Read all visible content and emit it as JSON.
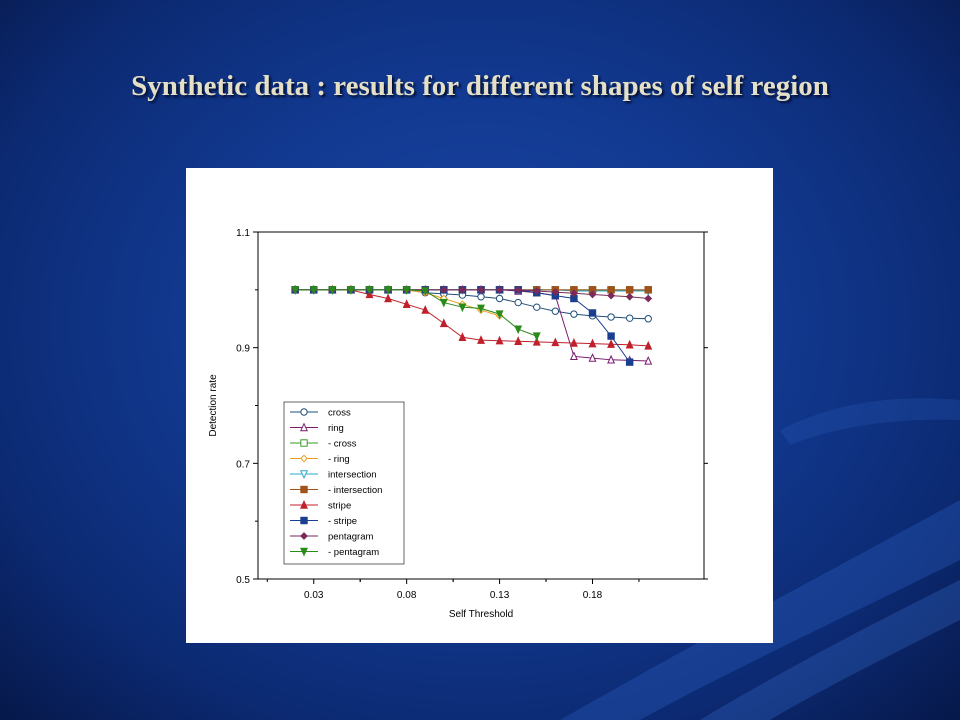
{
  "slide": {
    "title": "Synthetic data : results for different shapes of self region"
  },
  "colors": {
    "background": "#123a92",
    "title": "#e4e0c8",
    "panel": "#ffffff"
  },
  "chart_data": {
    "type": "line",
    "title": "",
    "xlabel": "Self Threshold",
    "ylabel": "Detection rate",
    "xlim": [
      0.0,
      0.24
    ],
    "ylim": [
      0.5,
      1.1
    ],
    "xticks": [
      "0.03",
      "0.08",
      "0.13",
      "0.18"
    ],
    "yticks": [
      "0.5",
      "0.7",
      "0.9",
      "1.1"
    ],
    "grid": false,
    "legend_position": "lower-left",
    "x": [
      0.02,
      0.03,
      0.04,
      0.05,
      0.06,
      0.07,
      0.08,
      0.09,
      0.1,
      0.11,
      0.12,
      0.13,
      0.14,
      0.15,
      0.16,
      0.17,
      0.18,
      0.19,
      0.2,
      0.21,
      0.22
    ],
    "series": [
      {
        "name": "cross",
        "color": "#1f4e79",
        "marker": "circle",
        "values": [
          1.0,
          1.0,
          1.0,
          1.0,
          1.0,
          1.0,
          1.0,
          0.995,
          0.993,
          0.991,
          0.988,
          0.985,
          0.978,
          0.97,
          0.963,
          0.958,
          0.955,
          0.953,
          0.951,
          0.95,
          null
        ]
      },
      {
        "name": "ring",
        "color": "#7a1b6d",
        "marker": "triangle-up",
        "values": [
          1.0,
          1.0,
          1.0,
          1.0,
          1.0,
          1.0,
          1.0,
          1.0,
          1.0,
          1.0,
          1.0,
          1.0,
          0.998,
          0.995,
          0.99,
          0.885,
          0.882,
          0.879,
          0.878,
          0.877,
          null
        ]
      },
      {
        "name": "- cross",
        "color": "#3a9a2a",
        "marker": "square-open",
        "values": [
          1.0,
          1.0,
          1.0,
          1.0,
          1.0,
          1.0,
          1.0,
          1.0,
          1.0,
          1.0,
          1.0,
          1.0,
          1.0,
          1.0,
          1.0,
          1.0,
          1.0,
          1.0,
          1.0,
          1.0,
          null
        ]
      },
      {
        "name": "- ring",
        "color": "#e8a020",
        "marker": "diamond",
        "values": [
          1.0,
          1.0,
          1.0,
          1.0,
          1.0,
          1.0,
          1.0,
          0.995,
          0.985,
          0.975,
          0.965,
          0.955,
          null,
          null,
          null,
          null,
          null,
          null,
          null,
          null,
          null
        ]
      },
      {
        "name": "intersection",
        "color": "#2aa8c8",
        "marker": "triangle-down",
        "values": [
          1.0,
          1.0,
          1.0,
          1.0,
          1.0,
          1.0,
          1.0,
          1.0,
          1.0,
          1.0,
          1.0,
          1.0,
          1.0,
          1.0,
          1.0,
          0.998,
          0.998,
          0.998,
          0.998,
          0.998,
          null
        ]
      },
      {
        "name": "- intersection",
        "color": "#a0521a",
        "marker": "square",
        "values": [
          1.0,
          1.0,
          1.0,
          1.0,
          1.0,
          1.0,
          1.0,
          1.0,
          1.0,
          1.0,
          1.0,
          1.0,
          1.0,
          1.0,
          1.0,
          1.0,
          1.0,
          1.0,
          1.0,
          1.0,
          null
        ]
      },
      {
        "name": "stripe",
        "color": "#c0202a",
        "marker": "triangle-up-filled",
        "values": [
          1.0,
          1.0,
          1.0,
          1.0,
          0.992,
          0.985,
          0.975,
          0.965,
          0.942,
          0.918,
          0.913,
          0.912,
          0.911,
          0.91,
          0.909,
          0.908,
          0.907,
          0.906,
          0.905,
          0.903,
          null
        ]
      },
      {
        "name": "- stripe",
        "color": "#1a3f8f",
        "marker": "square-filled",
        "values": [
          1.0,
          1.0,
          1.0,
          1.0,
          1.0,
          1.0,
          1.0,
          1.0,
          1.0,
          1.0,
          1.0,
          1.0,
          1.0,
          0.995,
          0.99,
          0.985,
          0.96,
          0.92,
          0.875,
          null,
          null
        ]
      },
      {
        "name": "pentagram",
        "color": "#7a2a5a",
        "marker": "diamond-filled",
        "values": [
          1.0,
          1.0,
          1.0,
          1.0,
          1.0,
          1.0,
          1.0,
          1.0,
          1.0,
          1.0,
          1.0,
          1.0,
          1.0,
          0.998,
          0.996,
          0.994,
          0.992,
          0.99,
          0.988,
          0.985,
          null
        ]
      },
      {
        "name": "- pentagram",
        "color": "#2a8a1a",
        "marker": "triangle-down-filled",
        "values": [
          1.0,
          1.0,
          1.0,
          1.0,
          1.0,
          1.0,
          1.0,
          0.998,
          0.978,
          0.97,
          0.968,
          0.958,
          0.932,
          0.92,
          null,
          null,
          null,
          null,
          null,
          null,
          null
        ]
      }
    ]
  }
}
